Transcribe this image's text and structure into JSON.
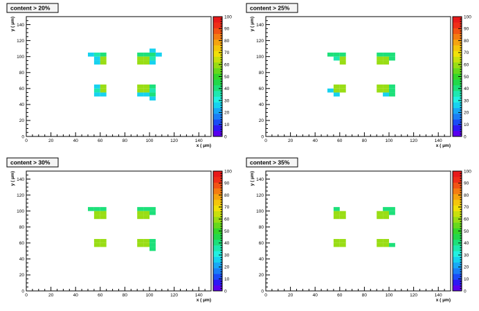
{
  "chart_data": [
    {
      "type": "heatmap",
      "title": "content > 20%",
      "xlabel": "x ( μm)",
      "ylabel": "y ( μm)",
      "xlim": [
        0,
        150
      ],
      "ylim": [
        0,
        150
      ],
      "xticks": [
        "0",
        "20",
        "40",
        "60",
        "80",
        "100",
        "120",
        "140"
      ],
      "yticks": [
        "0",
        "20",
        "40",
        "60",
        "80",
        "100",
        "120",
        "140"
      ],
      "zlim": [
        0,
        100
      ],
      "zticks": [
        "0",
        "10",
        "20",
        "30",
        "40",
        "50",
        "60",
        "70",
        "80",
        "90",
        "100"
      ],
      "bin_width": 5,
      "cells": [
        {
          "x": 50,
          "y": 100,
          "v": 24
        },
        {
          "x": 55,
          "y": 100,
          "v": 36
        },
        {
          "x": 60,
          "y": 100,
          "v": 40
        },
        {
          "x": 55,
          "y": 95,
          "v": 28
        },
        {
          "x": 60,
          "y": 95,
          "v": 58
        },
        {
          "x": 55,
          "y": 90,
          "v": 24
        },
        {
          "x": 60,
          "y": 90,
          "v": 58
        },
        {
          "x": 55,
          "y": 60,
          "v": 28
        },
        {
          "x": 60,
          "y": 60,
          "v": 58
        },
        {
          "x": 55,
          "y": 55,
          "v": 36
        },
        {
          "x": 60,
          "y": 55,
          "v": 58
        },
        {
          "x": 55,
          "y": 50,
          "v": 24
        },
        {
          "x": 60,
          "y": 50,
          "v": 28
        },
        {
          "x": 90,
          "y": 100,
          "v": 40
        },
        {
          "x": 95,
          "y": 100,
          "v": 40
        },
        {
          "x": 100,
          "y": 100,
          "v": 40
        },
        {
          "x": 105,
          "y": 100,
          "v": 24
        },
        {
          "x": 100,
          "y": 105,
          "v": 24
        },
        {
          "x": 90,
          "y": 95,
          "v": 58
        },
        {
          "x": 95,
          "y": 95,
          "v": 58
        },
        {
          "x": 100,
          "y": 95,
          "v": 36
        },
        {
          "x": 90,
          "y": 90,
          "v": 58
        },
        {
          "x": 95,
          "y": 90,
          "v": 58
        },
        {
          "x": 100,
          "y": 90,
          "v": 28
        },
        {
          "x": 90,
          "y": 60,
          "v": 58
        },
        {
          "x": 95,
          "y": 60,
          "v": 58
        },
        {
          "x": 100,
          "y": 60,
          "v": 40
        },
        {
          "x": 90,
          "y": 55,
          "v": 58
        },
        {
          "x": 95,
          "y": 55,
          "v": 58
        },
        {
          "x": 100,
          "y": 55,
          "v": 36
        },
        {
          "x": 90,
          "y": 50,
          "v": 24
        },
        {
          "x": 95,
          "y": 50,
          "v": 28
        },
        {
          "x": 100,
          "y": 50,
          "v": 40
        },
        {
          "x": 100,
          "y": 45,
          "v": 24
        }
      ]
    },
    {
      "type": "heatmap",
      "title": "content > 25%",
      "xlabel": "x ( μm)",
      "ylabel": "y ( μm)",
      "xlim": [
        0,
        150
      ],
      "ylim": [
        0,
        150
      ],
      "xticks": [
        "0",
        "20",
        "40",
        "60",
        "80",
        "100",
        "120",
        "140"
      ],
      "yticks": [
        "0",
        "20",
        "40",
        "60",
        "80",
        "100",
        "120",
        "140"
      ],
      "zlim": [
        0,
        100
      ],
      "zticks": [
        "0",
        "10",
        "20",
        "30",
        "40",
        "50",
        "60",
        "70",
        "80",
        "90",
        "100"
      ],
      "bin_width": 5,
      "cells": [
        {
          "x": 50,
          "y": 100,
          "v": 40
        },
        {
          "x": 55,
          "y": 100,
          "v": 40
        },
        {
          "x": 60,
          "y": 100,
          "v": 40
        },
        {
          "x": 55,
          "y": 95,
          "v": 36
        },
        {
          "x": 60,
          "y": 95,
          "v": 58
        },
        {
          "x": 60,
          "y": 90,
          "v": 58
        },
        {
          "x": 55,
          "y": 60,
          "v": 58
        },
        {
          "x": 60,
          "y": 60,
          "v": 58
        },
        {
          "x": 50,
          "y": 55,
          "v": 28
        },
        {
          "x": 55,
          "y": 55,
          "v": 58
        },
        {
          "x": 60,
          "y": 55,
          "v": 58
        },
        {
          "x": 55,
          "y": 50,
          "v": 28
        },
        {
          "x": 90,
          "y": 100,
          "v": 40
        },
        {
          "x": 95,
          "y": 100,
          "v": 40
        },
        {
          "x": 100,
          "y": 100,
          "v": 40
        },
        {
          "x": 90,
          "y": 95,
          "v": 58
        },
        {
          "x": 95,
          "y": 95,
          "v": 58
        },
        {
          "x": 100,
          "y": 95,
          "v": 40
        },
        {
          "x": 90,
          "y": 90,
          "v": 58
        },
        {
          "x": 95,
          "y": 90,
          "v": 58
        },
        {
          "x": 90,
          "y": 60,
          "v": 58
        },
        {
          "x": 95,
          "y": 60,
          "v": 58
        },
        {
          "x": 100,
          "y": 60,
          "v": 40
        },
        {
          "x": 90,
          "y": 55,
          "v": 58
        },
        {
          "x": 95,
          "y": 55,
          "v": 58
        },
        {
          "x": 100,
          "y": 55,
          "v": 40
        },
        {
          "x": 95,
          "y": 50,
          "v": 28
        },
        {
          "x": 100,
          "y": 50,
          "v": 40
        }
      ]
    },
    {
      "type": "heatmap",
      "title": "content > 30%",
      "xlabel": "x ( μm)",
      "ylabel": "y ( μm)",
      "xlim": [
        0,
        150
      ],
      "ylim": [
        0,
        150
      ],
      "xticks": [
        "0",
        "20",
        "40",
        "60",
        "80",
        "100",
        "120",
        "140"
      ],
      "yticks": [
        "0",
        "20",
        "40",
        "60",
        "80",
        "100",
        "120",
        "140"
      ],
      "zlim": [
        0,
        100
      ],
      "zticks": [
        "0",
        "10",
        "20",
        "30",
        "40",
        "50",
        "60",
        "70",
        "80",
        "90",
        "100"
      ],
      "bin_width": 5,
      "cells": [
        {
          "x": 50,
          "y": 100,
          "v": 40
        },
        {
          "x": 55,
          "y": 100,
          "v": 40
        },
        {
          "x": 60,
          "y": 100,
          "v": 40
        },
        {
          "x": 55,
          "y": 95,
          "v": 58
        },
        {
          "x": 60,
          "y": 95,
          "v": 58
        },
        {
          "x": 55,
          "y": 90,
          "v": 58
        },
        {
          "x": 60,
          "y": 90,
          "v": 58
        },
        {
          "x": 55,
          "y": 60,
          "v": 58
        },
        {
          "x": 60,
          "y": 60,
          "v": 58
        },
        {
          "x": 55,
          "y": 55,
          "v": 58
        },
        {
          "x": 60,
          "y": 55,
          "v": 58
        },
        {
          "x": 90,
          "y": 100,
          "v": 40
        },
        {
          "x": 95,
          "y": 100,
          "v": 40
        },
        {
          "x": 100,
          "y": 100,
          "v": 40
        },
        {
          "x": 90,
          "y": 95,
          "v": 58
        },
        {
          "x": 95,
          "y": 95,
          "v": 58
        },
        {
          "x": 100,
          "y": 95,
          "v": 40
        },
        {
          "x": 90,
          "y": 90,
          "v": 58
        },
        {
          "x": 95,
          "y": 90,
          "v": 58
        },
        {
          "x": 90,
          "y": 60,
          "v": 58
        },
        {
          "x": 95,
          "y": 60,
          "v": 58
        },
        {
          "x": 100,
          "y": 60,
          "v": 40
        },
        {
          "x": 90,
          "y": 55,
          "v": 58
        },
        {
          "x": 95,
          "y": 55,
          "v": 58
        },
        {
          "x": 100,
          "y": 55,
          "v": 40
        },
        {
          "x": 100,
          "y": 50,
          "v": 40
        }
      ]
    },
    {
      "type": "heatmap",
      "title": "content > 35%",
      "xlabel": "x ( μm)",
      "ylabel": "y ( μm)",
      "xlim": [
        0,
        150
      ],
      "ylim": [
        0,
        150
      ],
      "xticks": [
        "0",
        "20",
        "40",
        "60",
        "80",
        "100",
        "120",
        "140"
      ],
      "yticks": [
        "0",
        "20",
        "40",
        "60",
        "80",
        "100",
        "120",
        "140"
      ],
      "zlim": [
        0,
        100
      ],
      "zticks": [
        "0",
        "10",
        "20",
        "30",
        "40",
        "50",
        "60",
        "70",
        "80",
        "90",
        "100"
      ],
      "bin_width": 5,
      "cells": [
        {
          "x": 55,
          "y": 100,
          "v": 40
        },
        {
          "x": 55,
          "y": 95,
          "v": 58
        },
        {
          "x": 60,
          "y": 95,
          "v": 58
        },
        {
          "x": 55,
          "y": 90,
          "v": 58
        },
        {
          "x": 60,
          "y": 90,
          "v": 58
        },
        {
          "x": 55,
          "y": 60,
          "v": 58
        },
        {
          "x": 60,
          "y": 60,
          "v": 58
        },
        {
          "x": 55,
          "y": 55,
          "v": 58
        },
        {
          "x": 60,
          "y": 55,
          "v": 58
        },
        {
          "x": 95,
          "y": 100,
          "v": 40
        },
        {
          "x": 100,
          "y": 100,
          "v": 40
        },
        {
          "x": 90,
          "y": 95,
          "v": 58
        },
        {
          "x": 95,
          "y": 95,
          "v": 58
        },
        {
          "x": 100,
          "y": 95,
          "v": 40
        },
        {
          "x": 90,
          "y": 90,
          "v": 58
        },
        {
          "x": 95,
          "y": 90,
          "v": 58
        },
        {
          "x": 90,
          "y": 60,
          "v": 58
        },
        {
          "x": 95,
          "y": 60,
          "v": 58
        },
        {
          "x": 90,
          "y": 55,
          "v": 58
        },
        {
          "x": 95,
          "y": 55,
          "v": 58
        },
        {
          "x": 100,
          "y": 55,
          "v": 40
        }
      ]
    }
  ],
  "palette": [
    "#5a00ee",
    "#2d18f5",
    "#1a4cf6",
    "#1a7ef6",
    "#19a8f5",
    "#17d2ef",
    "#22f0e1",
    "#1ee8b0",
    "#1de07a",
    "#22d84a",
    "#34d62a",
    "#66d91c",
    "#99dd14",
    "#c8e00e",
    "#f0e10a",
    "#f5c60c",
    "#f5a40f",
    "#f47c12",
    "#f25414",
    "#ef2e18",
    "#e81a1a"
  ]
}
